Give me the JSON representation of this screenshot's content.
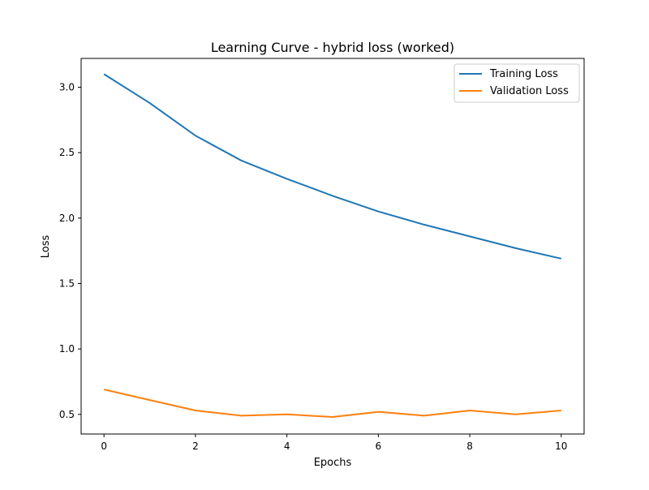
{
  "chart_data": {
    "type": "line",
    "title": "Learning Curve - hybrid loss (worked)",
    "xlabel": "Epochs",
    "ylabel": "Loss",
    "xlim": [
      -0.5,
      10.5
    ],
    "ylim": [
      0.35,
      3.22
    ],
    "xticks": [
      0,
      2,
      4,
      6,
      8,
      10
    ],
    "yticks": [
      0.5,
      1.0,
      1.5,
      2.0,
      2.5,
      3.0
    ],
    "ytick_labels": [
      "0.5",
      "1.0",
      "1.5",
      "2.0",
      "2.5",
      "3.0"
    ],
    "x": [
      0,
      1,
      2,
      3,
      4,
      5,
      6,
      7,
      8,
      9,
      10
    ],
    "series": [
      {
        "name": "Training Loss",
        "color": "#1f77b4",
        "values": [
          3.1,
          2.88,
          2.63,
          2.44,
          2.3,
          2.17,
          2.05,
          1.95,
          1.86,
          1.77,
          1.69
        ]
      },
      {
        "name": "Validation Loss",
        "color": "#ff7f0e",
        "values": [
          0.69,
          0.61,
          0.53,
          0.49,
          0.5,
          0.48,
          0.52,
          0.49,
          0.53,
          0.5,
          0.53
        ]
      }
    ],
    "grid": false,
    "legend": "top-right"
  }
}
